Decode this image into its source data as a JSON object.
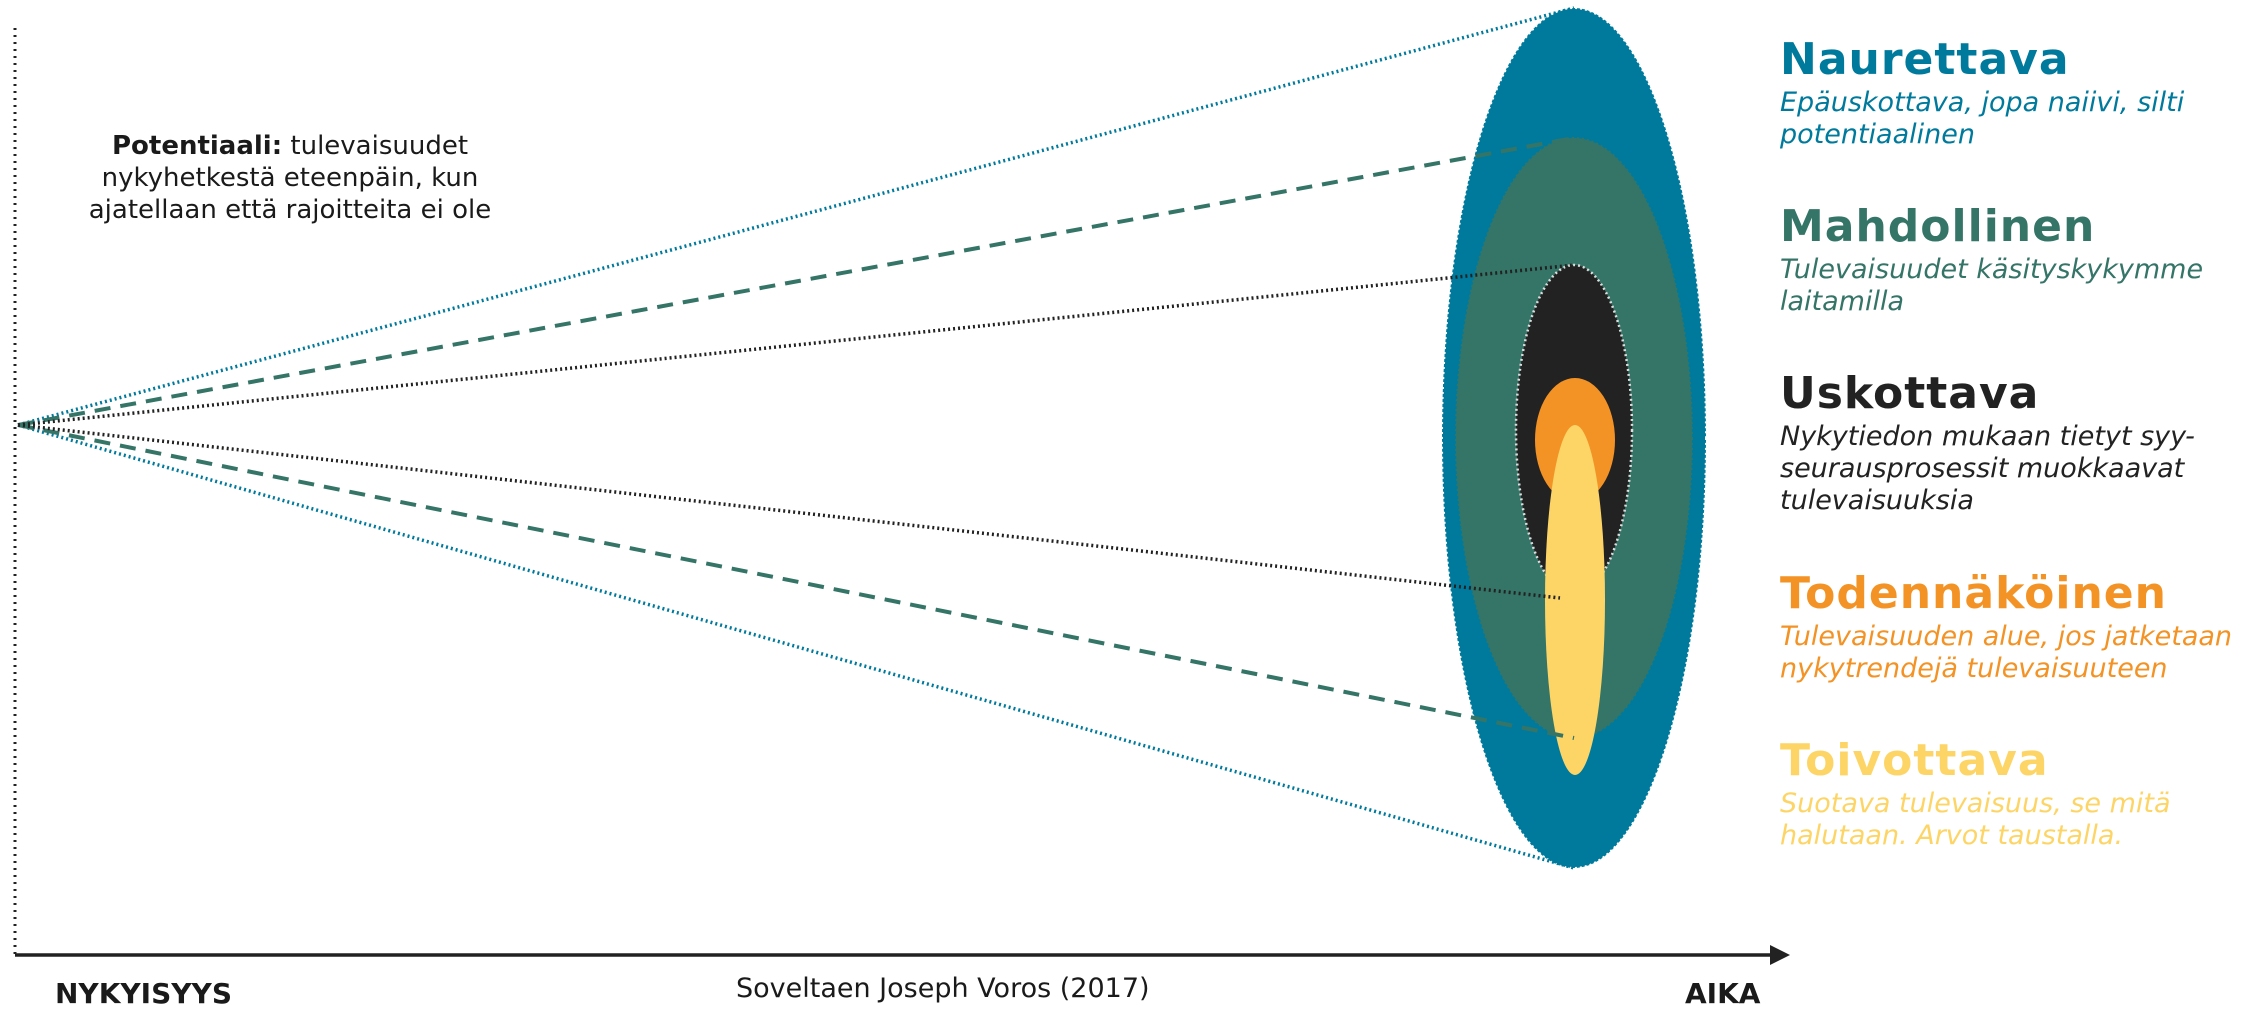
{
  "potential": {
    "bold": "Potentiaali:",
    "text_line1": " tulevaisuudet",
    "text_line2": "nykyhetkestä eteenpäin, kun",
    "text_line3": "ajatellaan että rajoitteita ei ole"
  },
  "axis": {
    "x_start_label": "NYKYISYYS",
    "x_end_label": "AIKA",
    "credit": "Soveltaen Joseph Voros (2017)"
  },
  "legend": [
    {
      "title": "Naurettava",
      "desc": "Epäuskottava, jopa naiivi, silti potentiaalinen",
      "color": "#007a9c"
    },
    {
      "title": "Mahdollinen",
      "desc": "Tulevaisuudet käsityskykymme laitamilla",
      "color": "#357567"
    },
    {
      "title": "Uskottava",
      "desc": "Nykytiedon mukaan tietyt syy-seurausprosessit muokkaavat tulevaisuuksia",
      "color": "#222222"
    },
    {
      "title": "Todennäköinen",
      "desc": "Tulevaisuuden alue, jos jatketaan nykytrendejä tulevaisuuteen",
      "color": "#f39325"
    },
    {
      "title": "Toivottava",
      "desc": "Suotava tulevaisuus, se mitä halutaan. Arvot taustalla.",
      "color": "#fdd567"
    }
  ]
}
